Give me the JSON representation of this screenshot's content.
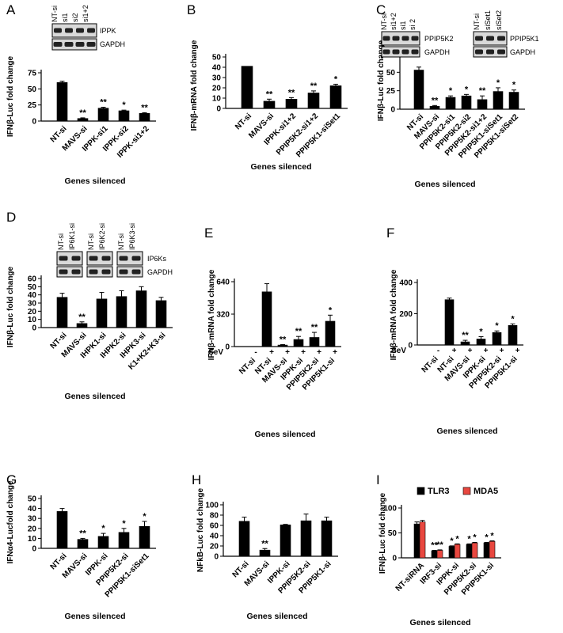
{
  "chart_data": [
    {
      "panel": "A",
      "type": "bar",
      "ylabel": "IFNβ-Luc fold change",
      "xlabel": "Genes silenced",
      "ylim": [
        0,
        75
      ],
      "yticks": [
        "0",
        "25",
        "50",
        "75"
      ],
      "categories": [
        "NT-si",
        "MAVS-si",
        "IPPK-si1",
        "IPPK-si2",
        "IPPK-si1+2"
      ],
      "values": [
        60,
        4,
        20,
        16,
        12
      ],
      "errors": [
        2,
        1,
        1.5,
        1,
        1
      ],
      "significance": [
        "",
        "**",
        "**",
        "*",
        "**"
      ],
      "blot": {
        "lanes": [
          "NT-si",
          "si1",
          "si2",
          "si1+2"
        ],
        "rows": [
          "IPPK",
          "GAPDH"
        ]
      }
    },
    {
      "panel": "B",
      "type": "bar",
      "ylabel": "IFNβ-mRNA fold change",
      "xlabel": "Genes silenced",
      "ylim": [
        0,
        50
      ],
      "yticks": [
        "0",
        "10",
        "20",
        "30",
        "40",
        "50"
      ],
      "categories": [
        "NT-si",
        "MAVS-si",
        "IPPK-si1+2",
        "PPIP5K2-si1+2",
        "PPIP5K1-siSet1"
      ],
      "values": [
        41,
        7,
        9,
        15,
        22
      ],
      "errors": [
        0,
        2,
        1.5,
        2,
        1.5
      ],
      "significance": [
        "",
        "**",
        "**",
        "**",
        "*"
      ]
    },
    {
      "panel": "C",
      "type": "bar",
      "ylabel": "IFNβ-Luc fold change",
      "xlabel": "Genes silenced",
      "ylim": [
        0,
        75
      ],
      "yticks": [
        "0",
        "25",
        "50",
        "75"
      ],
      "categories": [
        "NT-si",
        "MAVS-si",
        "PPIP5K2-si1",
        "PPIP5K2-si2",
        "PPIP5K2-si1+2",
        "PPIP5K1-siSet1",
        "PPIP5K1-siSet2"
      ],
      "values": [
        53,
        4,
        16,
        18,
        13,
        24,
        23
      ],
      "errors": [
        4,
        1,
        2,
        2,
        5,
        5,
        3
      ],
      "significance": [
        "",
        "**",
        "*",
        "*",
        "**",
        "*",
        "*"
      ],
      "blot1": {
        "lanes": [
          "NT-si",
          "si1+2",
          "si1",
          "si 2"
        ],
        "rows": [
          "PPIP5K2",
          "GAPDH"
        ]
      },
      "blot2": {
        "lanes": [
          "NT-si",
          "siSet1",
          "siSet2"
        ],
        "rows": [
          "PPIP5K1",
          "GAPDH"
        ]
      }
    },
    {
      "panel": "D",
      "type": "bar",
      "ylabel": "IFNβ-Luc fold change",
      "xlabel": "Genes silenced",
      "ylim": [
        0,
        60
      ],
      "yticks": [
        "0",
        "10",
        "20",
        "30",
        "40",
        "50",
        "60"
      ],
      "categories": [
        "NT-si",
        "MAVS-si",
        "IHPK1-si",
        "IHPK2-si",
        "IHPK3-si",
        "K1+K2+K3-si"
      ],
      "values": [
        37,
        5,
        35,
        38,
        45,
        33
      ],
      "errors": [
        5,
        2,
        8,
        7,
        5,
        4
      ],
      "significance": [
        "",
        "**",
        "",
        "",
        "",
        ""
      ],
      "blot": {
        "groups": [
          [
            "NT-si",
            "IP6K1-si"
          ],
          [
            "NT-si",
            "IP6K2-si"
          ],
          [
            "NT-si",
            "IP6K3-si"
          ]
        ],
        "rows": [
          "IP6Ks",
          "GAPDH"
        ]
      }
    },
    {
      "panel": "E",
      "type": "bar",
      "ylabel": "IFNβ-mRNA fold change",
      "xlabel": "Genes silenced",
      "ylim": [
        0,
        640
      ],
      "yticks": [
        "0",
        "320",
        "640"
      ],
      "row_label": "SeV",
      "sev": [
        "-",
        "+",
        "+",
        "+",
        "+",
        "+"
      ],
      "categories": [
        "NT-si",
        "NT-si",
        "MAVS-si",
        "IPPK-si",
        "PPIP5K2-si",
        "PPIP5K1-si"
      ],
      "values": [
        0,
        540,
        15,
        70,
        90,
        250
      ],
      "errors": [
        0,
        80,
        5,
        30,
        50,
        60
      ],
      "significance": [
        "",
        "",
        "**",
        "**",
        "**",
        "*"
      ]
    },
    {
      "panel": "F",
      "type": "bar",
      "ylabel": "IFNβ-mRNA fold change",
      "xlabel": "Genes silenced",
      "ylim": [
        0,
        400
      ],
      "yticks": [
        "0",
        "200",
        "400"
      ],
      "row_label": "SeV",
      "sev": [
        "-",
        "+",
        "+",
        "+",
        "+",
        "+"
      ],
      "categories": [
        "NT-si",
        "NT-si",
        "MAVS-si",
        "IPPK-si",
        "PPIP5K2-si",
        "PPIP5K1-si"
      ],
      "values": [
        0,
        290,
        20,
        38,
        80,
        125
      ],
      "errors": [
        0,
        10,
        10,
        15,
        10,
        10
      ],
      "significance": [
        "",
        "",
        "**",
        "*",
        "*",
        "*"
      ]
    },
    {
      "panel": "G",
      "type": "bar",
      "ylabel": "IFNα4-Lucfold change",
      "xlabel": "Genes silenced",
      "ylim": [
        0,
        50
      ],
      "yticks": [
        "0",
        "10",
        "20",
        "30",
        "40",
        "50"
      ],
      "categories": [
        "NT-si",
        "MAVS-si",
        "IPPK-si",
        "PPIP5K2-si",
        "PPIP5K1-siSet1"
      ],
      "values": [
        37,
        9,
        12,
        16,
        22
      ],
      "errors": [
        3,
        1,
        3,
        4,
        5
      ],
      "significance": [
        "",
        "**",
        "*",
        "*",
        "*"
      ]
    },
    {
      "panel": "H",
      "type": "bar",
      "ylabel": "NFkB-Luc fold change",
      "xlabel": "Genes silenced",
      "ylim": [
        0,
        100
      ],
      "yticks": [
        "0",
        "20",
        "40",
        "60",
        "80",
        "100"
      ],
      "categories": [
        "NT-si",
        "MAVS-si",
        "IPPK-si",
        "PPIP5K2-si",
        "PPIP5K1-si"
      ],
      "values": [
        68,
        12,
        61,
        69,
        69
      ],
      "errors": [
        8,
        3,
        1,
        13,
        7
      ],
      "significance": [
        "",
        "**",
        "",
        "",
        ""
      ]
    },
    {
      "panel": "I",
      "type": "bar",
      "ylabel": "IFNβ-Luc fold change",
      "xlabel": "Genes silenced",
      "ylim": [
        0,
        100
      ],
      "yticks": [
        "0",
        "50",
        "100"
      ],
      "categories": [
        "NT-siRNA",
        "IRF3-si",
        "IPPK-si",
        "PPIP5K2-si",
        "PPIP5K1-si"
      ],
      "legend_position": "top-right",
      "series": [
        {
          "name": "TLR3",
          "color": "#000000",
          "values": [
            68,
            14,
            23,
            27,
            30
          ],
          "errors": [
            4,
            1,
            1,
            1,
            1
          ],
          "significance": [
            "",
            "**",
            "*",
            "*",
            "*"
          ]
        },
        {
          "name": "MDA5",
          "color": "#e8473f",
          "values": [
            72,
            15,
            27,
            30,
            33
          ],
          "errors": [
            3,
            1,
            1,
            1,
            1
          ],
          "significance": [
            "",
            "**",
            "*",
            "*",
            "*"
          ]
        }
      ]
    }
  ]
}
